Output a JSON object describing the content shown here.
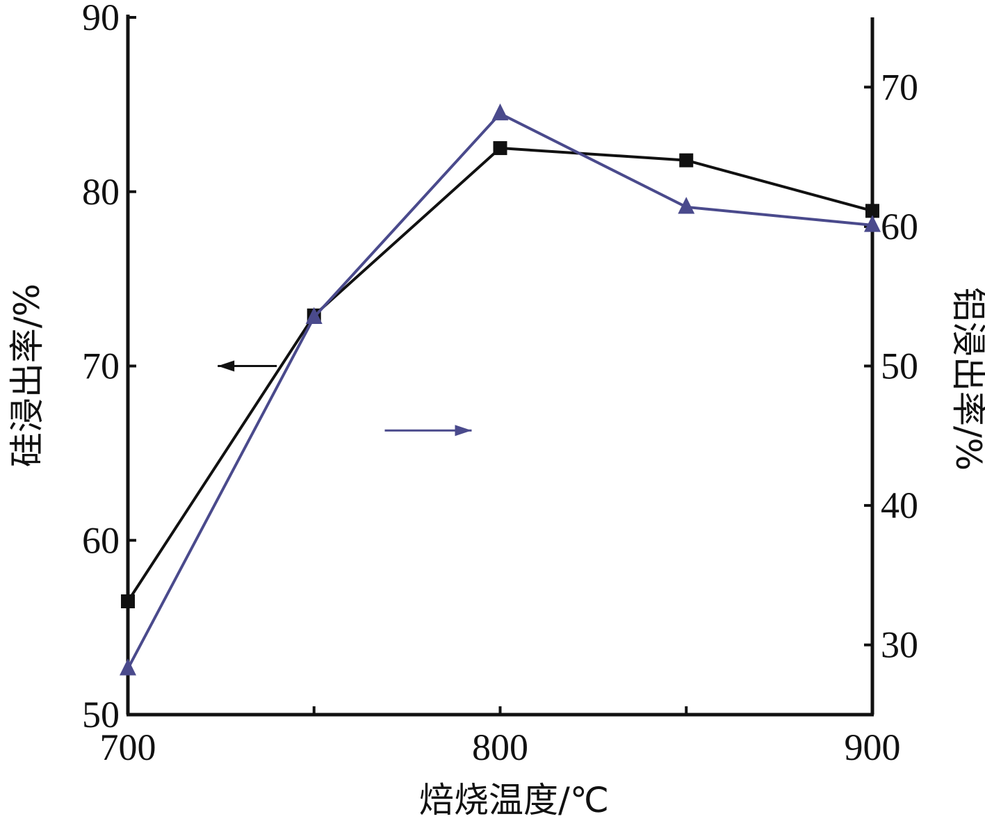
{
  "chart_data": {
    "type": "line",
    "xlabel": "焙烧温度/℃",
    "ylabel_left": "硅浸出率/%",
    "ylabel_right": "铝浸出率/%",
    "x": [
      700,
      750,
      800,
      850,
      900
    ],
    "x_tick_labels": [
      "700",
      "800",
      "900"
    ],
    "x_label_values": [
      700,
      800,
      900
    ],
    "x_minor_ticks": [
      750,
      850
    ],
    "xlim": [
      700,
      900
    ],
    "ylim_left": [
      50,
      90
    ],
    "ylim_right": [
      25,
      75
    ],
    "y_left_ticks": [
      50,
      60,
      70,
      80,
      90
    ],
    "y_right_ticks": [
      30,
      40,
      50,
      60,
      70
    ],
    "series": [
      {
        "axis": "left",
        "marker": "square",
        "color": "#111111",
        "values": [
          56.5,
          72.9,
          82.5,
          81.8,
          78.9
        ]
      },
      {
        "axis": "right",
        "marker": "triangle",
        "color": "#4a4a8c",
        "values": [
          28.3,
          53.5,
          68.1,
          61.4,
          60.1
        ]
      }
    ],
    "annotations": [
      {
        "type": "arrow",
        "direction": "left",
        "points_to": "left-axis",
        "color": "#111111",
        "x": 740,
        "y_left": 70
      },
      {
        "type": "arrow",
        "direction": "right",
        "points_to": "right-axis",
        "color": "#4a4a8c",
        "x": 769,
        "y_left": 66.3
      }
    ]
  }
}
